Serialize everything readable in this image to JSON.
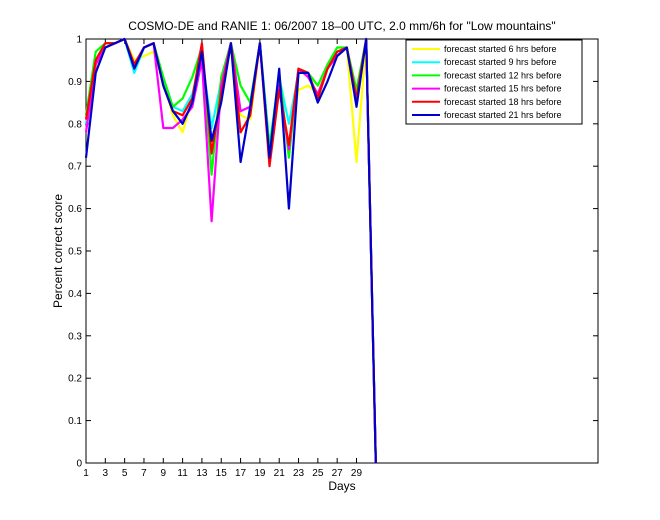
{
  "chart_data": {
    "type": "line",
    "title": "COSMO-DE and RANIE 1: 06/2007 18–00 UTC, 2.0 mm/6h for \"Low mountains\"",
    "xlabel": "Days",
    "ylabel": "Percent correct score",
    "xlim": [
      1,
      54
    ],
    "ylim": [
      0,
      1
    ],
    "xticks": [
      1,
      3,
      5,
      7,
      9,
      11,
      13,
      15,
      17,
      19,
      21,
      23,
      25,
      27,
      29
    ],
    "yticks": [
      0,
      0.1,
      0.2,
      0.3,
      0.4,
      0.5,
      0.6,
      0.7,
      0.8,
      0.9,
      1
    ],
    "legend_position": "top-right",
    "grid": false,
    "x": [
      1,
      2,
      3,
      4,
      5,
      6,
      7,
      8,
      9,
      10,
      11,
      12,
      13,
      14,
      15,
      16,
      17,
      18,
      19,
      20,
      21,
      22,
      23,
      24,
      25,
      26,
      27,
      28,
      29,
      30,
      31
    ],
    "series": [
      {
        "name": "forecast started 6 hrs before",
        "color": "#ffff00",
        "values": [
          0.78,
          0.93,
          0.98,
          0.99,
          1.0,
          0.95,
          0.96,
          0.97,
          0.9,
          0.82,
          0.78,
          0.86,
          0.97,
          0.74,
          0.88,
          0.98,
          0.82,
          0.81,
          0.99,
          0.74,
          0.88,
          0.75,
          0.88,
          0.89,
          0.87,
          0.94,
          0.97,
          0.98,
          0.71,
          1.0,
          0.0
        ]
      },
      {
        "name": "forecast started 9 hrs before",
        "color": "#00ffff",
        "values": [
          0.8,
          0.95,
          0.99,
          0.99,
          1.0,
          0.92,
          0.98,
          0.99,
          0.9,
          0.84,
          0.83,
          0.87,
          0.96,
          0.79,
          0.9,
          0.99,
          0.83,
          0.84,
          0.99,
          0.75,
          0.91,
          0.8,
          0.92,
          0.92,
          0.86,
          0.93,
          0.97,
          0.98,
          0.86,
          1.0,
          0.0
        ]
      },
      {
        "name": "forecast started 12 hrs before",
        "color": "#00ff00",
        "values": [
          0.82,
          0.97,
          0.99,
          0.99,
          1.0,
          0.94,
          0.98,
          0.99,
          0.91,
          0.84,
          0.86,
          0.91,
          0.98,
          0.68,
          0.91,
          0.99,
          0.89,
          0.85,
          0.99,
          0.74,
          0.92,
          0.72,
          0.93,
          0.92,
          0.89,
          0.94,
          0.98,
          0.98,
          0.88,
          1.0,
          0.0
        ]
      },
      {
        "name": "forecast started 15 hrs before",
        "color": "#ff00ff",
        "values": [
          0.78,
          0.94,
          0.98,
          0.99,
          1.0,
          0.94,
          0.98,
          0.99,
          0.79,
          0.79,
          0.81,
          0.84,
          0.95,
          0.57,
          0.89,
          0.99,
          0.83,
          0.84,
          0.99,
          0.72,
          0.89,
          0.74,
          0.93,
          0.91,
          0.87,
          0.93,
          0.96,
          0.98,
          0.85,
          1.0,
          0.0
        ]
      },
      {
        "name": "forecast started 18 hrs before",
        "color": "#ff0000",
        "values": [
          0.81,
          0.95,
          0.99,
          0.99,
          1.0,
          0.94,
          0.98,
          0.99,
          0.89,
          0.83,
          0.82,
          0.86,
          0.99,
          0.73,
          0.87,
          0.99,
          0.78,
          0.82,
          0.99,
          0.7,
          0.88,
          0.75,
          0.93,
          0.92,
          0.86,
          0.93,
          0.97,
          0.98,
          0.86,
          1.0,
          0.0
        ]
      },
      {
        "name": "forecast started 21 hrs before",
        "color": "#0000cc",
        "values": [
          0.72,
          0.92,
          0.98,
          0.99,
          1.0,
          0.93,
          0.98,
          0.99,
          0.89,
          0.83,
          0.8,
          0.85,
          0.97,
          0.76,
          0.85,
          0.99,
          0.71,
          0.84,
          0.99,
          0.72,
          0.93,
          0.6,
          0.92,
          0.92,
          0.85,
          0.9,
          0.96,
          0.98,
          0.84,
          1.0,
          0.0
        ]
      }
    ]
  }
}
